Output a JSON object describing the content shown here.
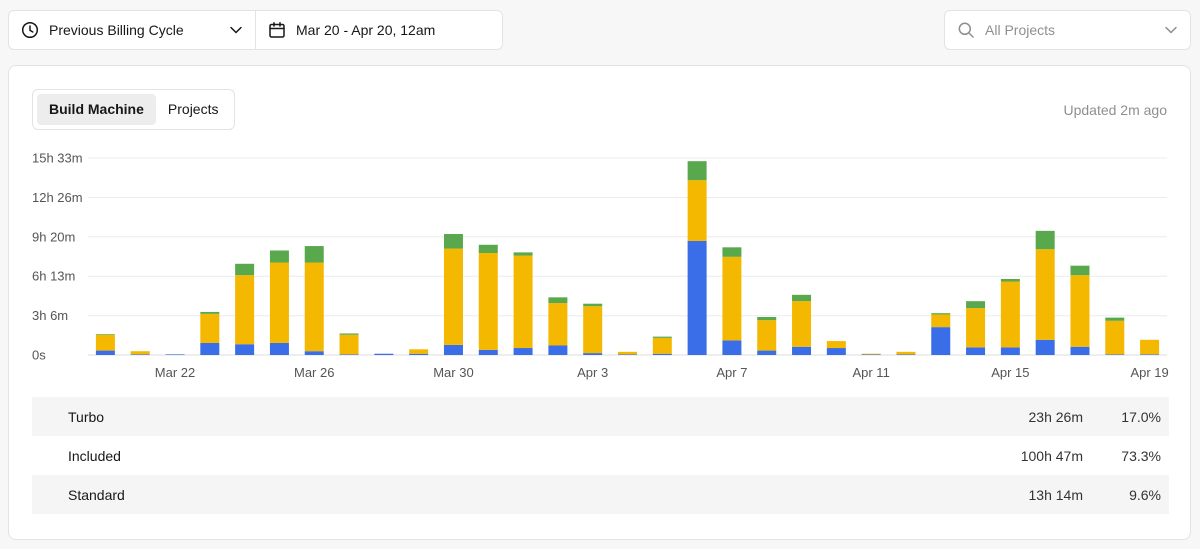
{
  "toolbar": {
    "cycle_label": "Previous Billing Cycle",
    "range_label": "Mar 20 - Apr 20, 12am",
    "projects_placeholder": "All Projects"
  },
  "card": {
    "tabs": [
      {
        "label": "Build Machine",
        "active": true
      },
      {
        "label": "Projects",
        "active": false
      }
    ],
    "updated": "Updated 2m ago"
  },
  "colors": {
    "turbo": "#3a6ee8",
    "included": "#f5b800",
    "standard": "#5aa84e"
  },
  "chart_data": {
    "type": "bar",
    "stacked": true,
    "y_unit": "hours",
    "ylim": [
      0,
      15.55
    ],
    "y_ticks": [
      {
        "value": 0,
        "label": "0s"
      },
      {
        "value": 3.1,
        "label": "3h 6m"
      },
      {
        "value": 6.22,
        "label": "6h 13m"
      },
      {
        "value": 9.33,
        "label": "9h 20m"
      },
      {
        "value": 12.43,
        "label": "12h 26m"
      },
      {
        "value": 15.55,
        "label": "15h 33m"
      }
    ],
    "categories": [
      "Mar 20",
      "Mar 21",
      "Mar 22",
      "Mar 23",
      "Mar 24",
      "Mar 25",
      "Mar 26",
      "Mar 27",
      "Mar 28",
      "Mar 29",
      "Mar 30",
      "Mar 31",
      "Apr 1",
      "Apr 2",
      "Apr 3",
      "Apr 4",
      "Apr 5",
      "Apr 6",
      "Apr 7",
      "Apr 8",
      "Apr 9",
      "Apr 10",
      "Apr 11",
      "Apr 12",
      "Apr 13",
      "Apr 14",
      "Apr 15",
      "Apr 16",
      "Apr 17",
      "Apr 18",
      "Apr 19"
    ],
    "x_tick_labels": [
      "Mar 22",
      "Mar 26",
      "Mar 30",
      "Apr 3",
      "Apr 7",
      "Apr 11",
      "Apr 15",
      "Apr 19"
    ],
    "grid": true,
    "series": [
      {
        "name": "Turbo",
        "color_key": "turbo",
        "values": [
          0.35,
          0.05,
          0.05,
          0.95,
          0.85,
          0.95,
          0.3,
          0.05,
          0.1,
          0.1,
          0.8,
          0.4,
          0.55,
          0.75,
          0.15,
          0.05,
          0.1,
          9.0,
          1.15,
          0.35,
          0.65,
          0.55,
          0.05,
          0.05,
          2.2,
          0.6,
          0.6,
          1.2,
          0.65,
          0.05,
          0.05
        ]
      },
      {
        "name": "Included",
        "color_key": "included",
        "values": [
          1.25,
          0.25,
          0.0,
          2.3,
          5.45,
          6.35,
          7.0,
          1.55,
          0.0,
          0.35,
          7.6,
          7.65,
          7.3,
          3.35,
          3.7,
          0.2,
          1.25,
          4.8,
          6.6,
          2.4,
          3.6,
          0.55,
          0.05,
          0.2,
          1.0,
          3.1,
          5.2,
          7.15,
          5.65,
          2.65,
          1.15
        ]
      },
      {
        "name": "Standard",
        "color_key": "standard",
        "values": [
          0.05,
          0.0,
          0.0,
          0.15,
          0.9,
          0.95,
          1.3,
          0.1,
          0.0,
          0.0,
          1.15,
          0.65,
          0.25,
          0.45,
          0.2,
          0.0,
          0.1,
          1.5,
          0.75,
          0.25,
          0.5,
          0.0,
          0.0,
          0.0,
          0.1,
          0.55,
          0.2,
          1.45,
          0.75,
          0.25,
          0.0
        ]
      }
    ]
  },
  "legend": [
    {
      "name": "Turbo",
      "color_key": "turbo",
      "time": "23h 26m",
      "percent": "17.0%"
    },
    {
      "name": "Included",
      "color_key": "included",
      "time": "100h 47m",
      "percent": "73.3%"
    },
    {
      "name": "Standard",
      "color_key": "standard",
      "time": "13h 14m",
      "percent": "9.6%"
    }
  ]
}
